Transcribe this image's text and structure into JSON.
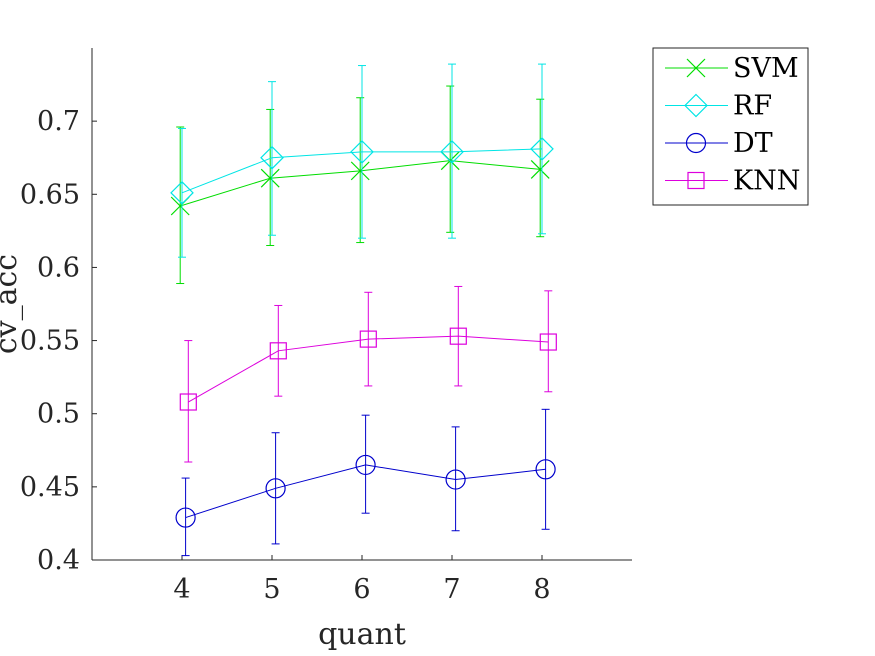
{
  "chart_data": {
    "type": "line",
    "xlabel": "quant",
    "ylabel": "cv_acc",
    "x": [
      4,
      5,
      6,
      7,
      8
    ],
    "xlim": [
      3,
      9
    ],
    "ylim": [
      0.4,
      0.75
    ],
    "xticks": [
      "4",
      "5",
      "6",
      "7",
      "8"
    ],
    "yticks": [
      "0.4",
      "0.45",
      "0.5",
      "0.55",
      "0.6",
      "0.65",
      "0.7"
    ],
    "ytick_values": [
      0.4,
      0.45,
      0.5,
      0.55,
      0.6,
      0.65,
      0.7
    ],
    "grid": false,
    "legend_position": "outside-top-right",
    "series": [
      {
        "name": "SVM",
        "color": "#00dd00",
        "marker": "x",
        "offset": -0.02,
        "values": [
          0.642,
          0.661,
          0.666,
          0.673,
          0.667
        ],
        "err_low": [
          0.589,
          0.615,
          0.617,
          0.624,
          0.621
        ],
        "err_high": [
          0.696,
          0.708,
          0.716,
          0.724,
          0.715
        ]
      },
      {
        "name": "RF",
        "color": "#00e5e5",
        "marker": "diamond",
        "offset": 0.0,
        "values": [
          0.651,
          0.675,
          0.679,
          0.679,
          0.681
        ],
        "err_low": [
          0.607,
          0.622,
          0.62,
          0.62,
          0.623
        ],
        "err_high": [
          0.695,
          0.727,
          0.738,
          0.739,
          0.739
        ]
      },
      {
        "name": "DT",
        "color": "#0000cc",
        "marker": "circle",
        "offset": 0.04,
        "values": [
          0.429,
          0.449,
          0.465,
          0.455,
          0.462
        ],
        "err_low": [
          0.403,
          0.411,
          0.432,
          0.42,
          0.421
        ],
        "err_high": [
          0.456,
          0.487,
          0.499,
          0.491,
          0.503
        ]
      },
      {
        "name": "KNN",
        "color": "#dd00dd",
        "marker": "square",
        "offset": 0.07,
        "values": [
          0.508,
          0.543,
          0.551,
          0.553,
          0.549
        ],
        "err_low": [
          0.467,
          0.512,
          0.519,
          0.519,
          0.515
        ],
        "err_high": [
          0.55,
          0.574,
          0.583,
          0.587,
          0.584
        ]
      }
    ]
  }
}
